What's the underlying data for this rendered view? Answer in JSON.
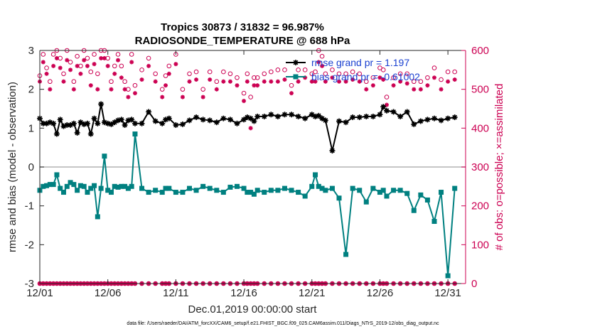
{
  "chart_data": {
    "type": "line",
    "title_line1": "Tropics 30873 / 31832 = 96.987%",
    "title_line2": "RADIOSONDE_TEMPERATURE @ 688 hPa",
    "xlabel": "Dec.01,2019 00:00:00 start",
    "ylabel": "rmse and bias (model - observation)",
    "y2label": "# of obs: o=possible; ×=assimilated",
    "xlim": [
      0,
      31.3
    ],
    "ylim": [
      -3,
      3
    ],
    "y2lim": [
      0,
      600
    ],
    "xticks": [
      0,
      5,
      10,
      15,
      20,
      25,
      30
    ],
    "xtick_labels": [
      "12/01",
      "12/06",
      "12/11",
      "12/16",
      "12/21",
      "12/26",
      "12/31"
    ],
    "yticks": [
      -3,
      -2,
      -1,
      0,
      1,
      2,
      3
    ],
    "ytick_labels": [
      "-3",
      "-2",
      "-1",
      "0",
      "1",
      "2",
      "3"
    ],
    "y2ticks": [
      0,
      100,
      200,
      300,
      400,
      500,
      600
    ],
    "y2tick_labels": [
      "0",
      "100",
      "200",
      "300",
      "400",
      "500",
      "600"
    ],
    "legend_position": "top-right",
    "footer": "data file: /Users/raeder/DAI/ATM_forcXX/CAM6_setup/f.e21.FHIST_BGC.f09_025.CAM6assim.011/Diags_NTrS_2019-12/obs_diag_output.nc",
    "colors": {
      "rmse": "#000000",
      "bias": "#008080",
      "obs": "#cc0052",
      "zero": "#b3b3b3"
    },
    "rmse": {
      "legend": "rmse grand pr = 1.197",
      "x": [
        0.0,
        0.25,
        0.5,
        0.75,
        1.0,
        1.25,
        1.5,
        1.75,
        2.0,
        2.25,
        2.5,
        2.75,
        3.0,
        3.25,
        3.5,
        3.75,
        4.0,
        4.25,
        4.5,
        4.75,
        5.0,
        5.25,
        5.5,
        5.75,
        6.0,
        6.25,
        6.5,
        6.75,
        7.0,
        7.5,
        8.0,
        8.5,
        9.0,
        9.25,
        9.5,
        10.0,
        10.5,
        11.0,
        11.5,
        12.0,
        12.5,
        13.0,
        13.5,
        14.0,
        14.5,
        15.0,
        15.25,
        15.5,
        15.75,
        16.0,
        16.5,
        17.0,
        17.5,
        18.0,
        18.5,
        19.0,
        19.5,
        20.0,
        20.25,
        20.5,
        20.75,
        21.0,
        21.5,
        22.0,
        22.5,
        23.0,
        23.5,
        24.0,
        24.5,
        25.0,
        25.25,
        25.5,
        26.0,
        26.5,
        27.0,
        27.5,
        28.0,
        28.5,
        29.0,
        29.5,
        30.0,
        30.5
      ],
      "y": [
        1.25,
        1.12,
        1.12,
        1.15,
        1.12,
        0.85,
        1.22,
        1.05,
        1.08,
        1.08,
        1.12,
        0.88,
        1.15,
        1.1,
        1.12,
        0.85,
        1.25,
        1.12,
        1.62,
        1.15,
        1.12,
        1.1,
        1.15,
        1.2,
        1.22,
        1.08,
        1.2,
        1.22,
        1.12,
        1.12,
        1.42,
        1.18,
        1.12,
        1.22,
        1.25,
        1.08,
        1.1,
        1.2,
        1.28,
        1.22,
        1.2,
        1.15,
        1.25,
        1.22,
        1.12,
        1.22,
        1.28,
        1.25,
        1.18,
        1.3,
        1.3,
        1.35,
        1.3,
        1.35,
        1.35,
        1.3,
        1.25,
        1.35,
        1.3,
        1.32,
        1.25,
        1.2,
        0.42,
        1.18,
        1.15,
        1.28,
        1.28,
        1.3,
        1.3,
        1.35,
        1.55,
        1.45,
        1.42,
        1.3,
        1.42,
        1.1,
        1.18,
        1.22,
        1.25,
        1.2,
        1.25,
        1.28
      ]
    },
    "bias": {
      "legend": "bias grand pr = -0.61002",
      "x": [
        0.0,
        0.25,
        0.5,
        0.75,
        1.0,
        1.25,
        1.5,
        1.75,
        2.0,
        2.25,
        2.5,
        2.75,
        3.0,
        3.25,
        3.5,
        3.75,
        4.0,
        4.25,
        4.5,
        4.75,
        5.0,
        5.25,
        5.5,
        5.75,
        6.0,
        6.25,
        6.5,
        6.75,
        7.0,
        7.5,
        8.0,
        8.5,
        9.0,
        9.25,
        9.5,
        10.0,
        10.5,
        11.0,
        11.5,
        12.0,
        12.5,
        13.0,
        13.5,
        14.0,
        14.5,
        15.0,
        15.25,
        15.5,
        15.75,
        16.0,
        16.5,
        17.0,
        17.5,
        18.0,
        18.5,
        19.0,
        19.5,
        20.0,
        20.25,
        20.5,
        20.75,
        21.0,
        21.5,
        22.0,
        22.5,
        23.0,
        23.5,
        24.0,
        24.5,
        25.0,
        25.25,
        25.5,
        26.0,
        26.5,
        27.0,
        27.5,
        28.0,
        28.5,
        29.0,
        29.5,
        30.0,
        30.5
      ],
      "y": [
        -0.6,
        -0.5,
        -0.48,
        -0.45,
        -0.45,
        -0.2,
        -0.55,
        -0.65,
        -0.5,
        -0.4,
        -0.45,
        -0.6,
        -0.48,
        -0.5,
        -0.65,
        -0.55,
        -0.48,
        -1.28,
        -0.55,
        0.28,
        -0.6,
        -0.65,
        -0.5,
        -0.52,
        -0.5,
        -0.5,
        -0.55,
        -0.5,
        0.85,
        -0.55,
        -0.65,
        -0.6,
        -0.65,
        -0.55,
        -0.55,
        -0.65,
        -0.65,
        -0.55,
        -0.6,
        -0.5,
        -0.55,
        -0.6,
        -0.65,
        -0.52,
        -0.5,
        -0.55,
        -0.65,
        -0.65,
        -0.7,
        -0.6,
        -0.65,
        -0.6,
        -0.6,
        -0.55,
        -0.6,
        -0.65,
        -0.75,
        -0.5,
        -0.2,
        -0.5,
        -0.55,
        -0.6,
        -0.55,
        -0.8,
        -2.25,
        -0.55,
        -0.6,
        -0.9,
        -0.55,
        -0.65,
        -0.6,
        -0.75,
        -0.6,
        -0.6,
        -0.68,
        -1.12,
        -0.72,
        -0.85,
        -1.4,
        -0.65,
        -2.8,
        -0.55
      ]
    },
    "possible": {
      "x": [
        0.0,
        0.25,
        0.5,
        0.75,
        1.0,
        1.25,
        1.5,
        1.75,
        2.0,
        2.25,
        2.5,
        2.75,
        3.0,
        3.25,
        3.5,
        3.75,
        4.0,
        4.25,
        4.5,
        4.75,
        5.0,
        5.25,
        5.5,
        5.75,
        6.0,
        6.25,
        6.5,
        6.75,
        7.0,
        7.5,
        8.0,
        8.5,
        9.0,
        9.25,
        9.5,
        10.0,
        10.5,
        11.0,
        11.5,
        12.0,
        12.5,
        13.0,
        13.5,
        14.0,
        14.5,
        15.0,
        15.25,
        15.5,
        15.75,
        16.0,
        16.5,
        17.0,
        17.5,
        18.0,
        18.5,
        19.0,
        19.5,
        20.0,
        20.25,
        20.5,
        20.75,
        21.0,
        21.5,
        22.0,
        22.5,
        23.0,
        23.5,
        24.0,
        24.5,
        25.0,
        25.25,
        25.5,
        26.0,
        26.5,
        27.0,
        27.5,
        28.0,
        28.5,
        29.0,
        29.5,
        30.0,
        30.5
      ],
      "y": [
        535,
        590,
        555,
        520,
        590,
        600,
        580,
        540,
        600,
        570,
        520,
        585,
        560,
        600,
        580,
        545,
        590,
        540,
        600,
        600,
        580,
        520,
        560,
        590,
        560,
        520,
        500,
        590,
        510,
        550,
        580,
        540,
        500,
        535,
        560,
        590,
        500,
        540,
        545,
        500,
        545,
        520,
        545,
        540,
        530,
        490,
        540,
        480,
        530,
        530,
        540,
        545,
        550,
        550,
        510,
        550,
        550,
        540,
        545,
        600,
        585,
        540,
        550,
        540,
        540,
        545,
        540,
        520,
        530,
        555,
        550,
        480,
        530,
        540,
        540,
        520,
        520,
        530,
        555,
        525,
        545,
        545
      ]
    },
    "assimilated": {
      "x": [
        0.0,
        0.25,
        0.5,
        0.75,
        1.0,
        1.25,
        1.5,
        1.75,
        2.0,
        2.25,
        2.5,
        2.75,
        3.0,
        3.25,
        3.5,
        3.75,
        4.0,
        4.25,
        4.5,
        4.75,
        5.0,
        5.25,
        5.5,
        5.75,
        6.0,
        6.25,
        6.5,
        6.75,
        7.0,
        7.5,
        8.0,
        8.5,
        9.0,
        9.25,
        9.5,
        10.0,
        10.5,
        11.0,
        11.5,
        12.0,
        12.5,
        13.0,
        13.5,
        14.0,
        14.5,
        15.0,
        15.25,
        15.5,
        15.75,
        16.0,
        16.5,
        17.0,
        17.5,
        18.0,
        18.5,
        19.0,
        19.5,
        20.0,
        20.25,
        20.5,
        20.75,
        21.0,
        21.5,
        22.0,
        22.5,
        23.0,
        23.5,
        24.0,
        24.5,
        25.0,
        25.25,
        25.5,
        26.0,
        26.5,
        27.0,
        27.5,
        28.0,
        28.5,
        29.0,
        29.5,
        30.0,
        30.5
      ],
      "y": [
        520,
        570,
        540,
        500,
        560,
        580,
        555,
        520,
        575,
        550,
        500,
        560,
        540,
        575,
        560,
        510,
        565,
        500,
        580,
        580,
        560,
        500,
        540,
        575,
        530,
        500,
        480,
        570,
        490,
        525,
        560,
        520,
        480,
        510,
        540,
        565,
        480,
        520,
        525,
        480,
        525,
        500,
        520,
        520,
        510,
        470,
        520,
        400,
        510,
        510,
        520,
        520,
        520,
        525,
        490,
        520,
        530,
        520,
        520,
        570,
        560,
        520,
        530,
        520,
        520,
        525,
        520,
        500,
        510,
        530,
        525,
        460,
        510,
        520,
        515,
        500,
        500,
        510,
        530,
        500,
        520,
        525
      ]
    },
    "zero_row": {
      "x": [
        0.0,
        0.25,
        0.5,
        0.75,
        1.0,
        1.25,
        1.5,
        1.75,
        2.0,
        2.25,
        2.5,
        2.75,
        3.0,
        3.25,
        3.5,
        3.75,
        4.0,
        4.25,
        4.5,
        4.75,
        5.0,
        5.25,
        5.5,
        5.75,
        6.0,
        6.25,
        6.5,
        6.75,
        7.0,
        7.5,
        8.0,
        8.5,
        9.0,
        9.25,
        9.5,
        10.0,
        10.5,
        11.0,
        11.5,
        12.0,
        12.5,
        13.0,
        13.5,
        14.0,
        14.5,
        15.0,
        15.25,
        15.5,
        15.75,
        16.0,
        16.5,
        17.0,
        17.5,
        18.0,
        18.5,
        19.0,
        19.5,
        20.0,
        20.25,
        20.5,
        20.75,
        21.0,
        21.5,
        22.0,
        22.5,
        23.0,
        23.5,
        24.0,
        24.5,
        25.0,
        25.25,
        25.5,
        26.0,
        26.5,
        27.0,
        27.5,
        28.0,
        28.5,
        29.0,
        29.5,
        30.0,
        30.5
      ],
      "y": 0
    }
  }
}
